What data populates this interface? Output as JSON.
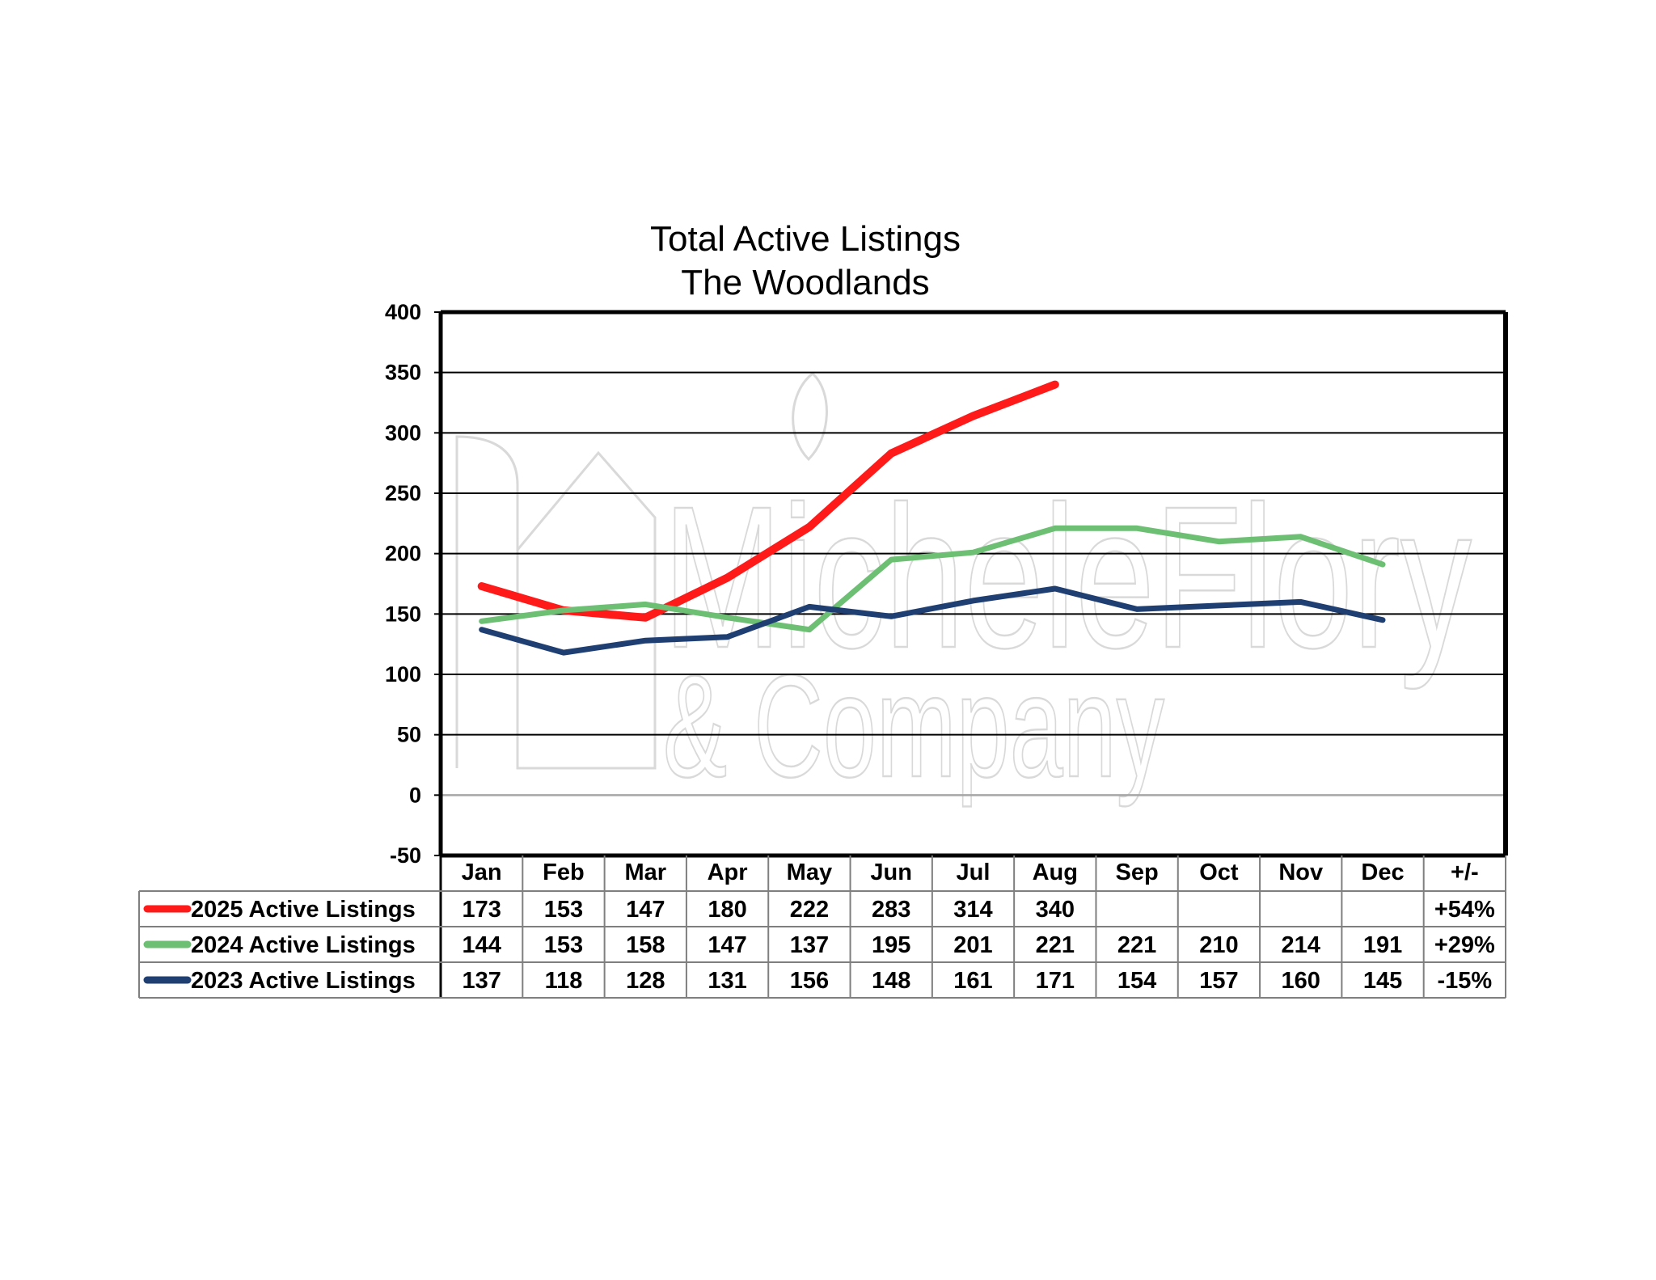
{
  "chart_data": {
    "type": "line",
    "title": "Total Active Listings",
    "subtitle": "The Woodlands",
    "categories": [
      "Jan",
      "Feb",
      "Mar",
      "Apr",
      "May",
      "Jun",
      "Jul",
      "Aug",
      "Sep",
      "Oct",
      "Nov",
      "Dec"
    ],
    "change_header": "+/-",
    "series": [
      {
        "name": "2025 Active Listings",
        "color": "#ff1a1a",
        "values": [
          173,
          153,
          147,
          180,
          222,
          283,
          314,
          340,
          null,
          null,
          null,
          null
        ],
        "change": "+54%"
      },
      {
        "name": "2024 Active Listings",
        "color": "#6cbf73",
        "values": [
          144,
          153,
          158,
          147,
          137,
          195,
          201,
          221,
          221,
          210,
          214,
          191
        ],
        "change": "+29%"
      },
      {
        "name": "2023 Active Listings",
        "color": "#1f3f73",
        "values": [
          137,
          118,
          128,
          131,
          156,
          148,
          161,
          171,
          154,
          157,
          160,
          145
        ],
        "change": "-15%"
      }
    ],
    "ylim": [
      -50,
      400
    ],
    "yticks": [
      -50,
      0,
      50,
      100,
      150,
      200,
      250,
      300,
      350,
      400
    ],
    "grid": true,
    "legend": "data table below chart"
  },
  "watermark": {
    "line1": "MicheleFlory",
    "line2": "& Company"
  }
}
